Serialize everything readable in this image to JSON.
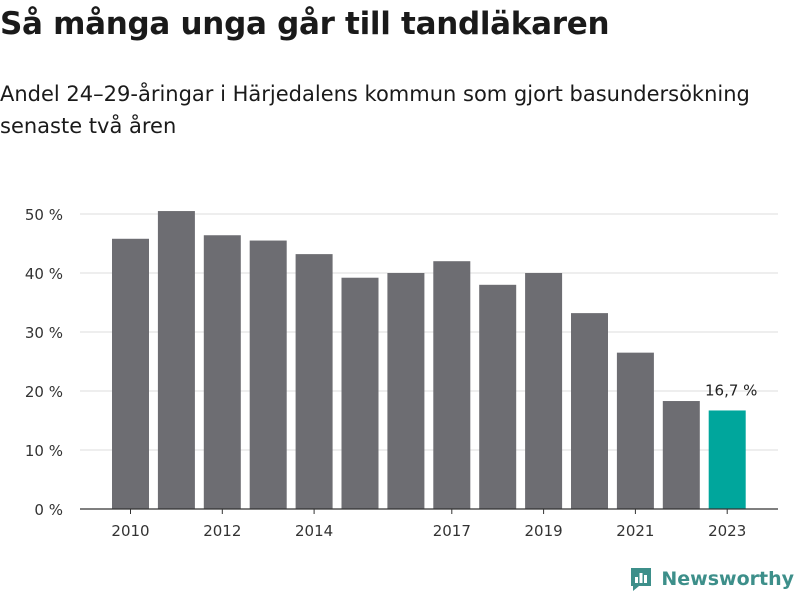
{
  "title": "Så många unga går till tandläkaren",
  "subtitle": "Andel 24–29-åringar i Härjedalens kommun som gjort basundersökning senaste två åren",
  "brand": {
    "name": "Newsworthy",
    "color": "#3d8f8a"
  },
  "colors": {
    "bar": "#6d6d72",
    "highlight": "#00a69c",
    "grid": "#dddddd",
    "axis": "#333333"
  },
  "chart_data": {
    "type": "bar",
    "categories": [
      2010,
      2011,
      2012,
      2013,
      2014,
      2015,
      2016,
      2017,
      2018,
      2019,
      2020,
      2021,
      2022,
      2023
    ],
    "values": [
      45.8,
      50.5,
      46.4,
      45.5,
      43.2,
      39.2,
      40.0,
      42.0,
      38.0,
      40.0,
      33.2,
      26.5,
      18.3,
      16.7
    ],
    "xtick_labels": [
      "2010",
      "",
      "2012",
      "",
      "2014",
      "",
      "",
      "2017",
      "",
      "2019",
      "",
      "2021",
      "",
      "2023"
    ],
    "yticks": [
      0,
      10,
      20,
      30,
      40,
      50
    ],
    "ytick_labels": [
      "0 %",
      "10 %",
      "20 %",
      "30 %",
      "40 %",
      "50 %"
    ],
    "ylim": [
      0,
      50
    ],
    "highlight_index": 13,
    "highlight_label": "16,7 %",
    "grid": true
  }
}
